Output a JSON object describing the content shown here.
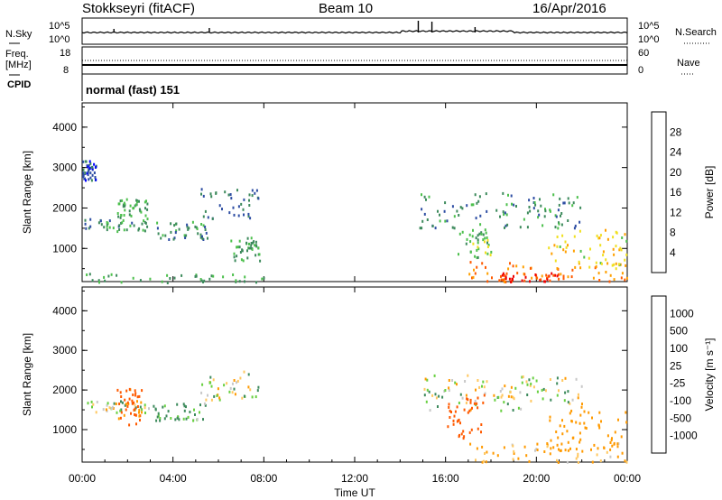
{
  "header": {
    "station": "Stokkseyri (fitACF)",
    "beam": "Beam 10",
    "date": "16/Apr/2016"
  },
  "top_panel": {
    "left_label": "N.Sky",
    "left_ticks": [
      "10^5",
      "10^0"
    ],
    "right_label": "N.Search",
    "right_ticks": [
      "10^5",
      "10^0"
    ]
  },
  "freq_panel": {
    "left_label_line1": "Freq.",
    "left_label_line2": "[MHz]",
    "left_ticks": [
      "18",
      "8"
    ],
    "right_label": "Nave",
    "right_ticks": [
      "60",
      "0"
    ]
  },
  "cpid": {
    "label": "CPID",
    "mode": "normal (fast) 151"
  },
  "power_panel": {
    "ylabel": "Slant Range [km]",
    "yticks": [
      "4000",
      "3000",
      "2000",
      "1000"
    ],
    "colorbar_label": "Power [dB]",
    "colorbar_ticks": [
      "28",
      "24",
      "20",
      "16",
      "12",
      "8",
      "4"
    ]
  },
  "velocity_panel": {
    "ylabel": "Slant Range [km]",
    "yticks": [
      "4000",
      "3000",
      "2000",
      "1000"
    ],
    "colorbar_label": "Velocity [m s⁻¹]",
    "colorbar_ticks": [
      "1000",
      "500",
      "100",
      "25",
      "-25",
      "-100",
      "-500",
      "-1000"
    ]
  },
  "xaxis": {
    "label": "Time UT",
    "ticks": [
      "00:00",
      "04:00",
      "08:00",
      "12:00",
      "16:00",
      "20:00",
      "00:00"
    ]
  },
  "colors": {
    "power_scale": [
      "#0000ff",
      "#2e4ea3",
      "#3d8a5c",
      "#4dc04d",
      "#f0e020",
      "#ffa000",
      "#ff5a00",
      "#ee0000"
    ],
    "velocity_scale": [
      "#ff0000",
      "#ff5a00",
      "#ff9a00",
      "#ffc860",
      "#c8c8c8",
      "#68d040",
      "#3d8a5c",
      "#2e4ea3",
      "#0000ff"
    ]
  },
  "chart_data": {
    "type": "heatmap",
    "x_range_hours": [
      0,
      24
    ],
    "y_range_km": [
      180,
      4600
    ],
    "power_clusters": [
      {
        "t0": 0.1,
        "t1": 3.0,
        "r0": 1450,
        "r1": 1750,
        "power_db": 10
      },
      {
        "t0": 1.5,
        "t1": 2.9,
        "r0": 1750,
        "r1": 2250,
        "power_db": 12
      },
      {
        "t0": 3.0,
        "t1": 5.5,
        "r0": 1250,
        "r1": 1700,
        "power_db": 10
      },
      {
        "t0": 5.2,
        "t1": 7.8,
        "r0": 1750,
        "r1": 2500,
        "power_db": 8
      },
      {
        "t0": 6.5,
        "t1": 7.8,
        "r0": 700,
        "r1": 1300,
        "power_db": 12
      },
      {
        "t0": 0.0,
        "t1": 8.0,
        "r0": 180,
        "r1": 400,
        "power_db": 12
      },
      {
        "t0": 0.0,
        "t1": 0.6,
        "r0": 2700,
        "r1": 3200,
        "power_db": 6
      },
      {
        "t0": 14.8,
        "t1": 22.0,
        "r0": 1500,
        "r1": 2400,
        "power_db": 10
      },
      {
        "t0": 16.5,
        "t1": 18.0,
        "r0": 800,
        "r1": 1500,
        "power_db": 14
      },
      {
        "t0": 17.0,
        "t1": 24.0,
        "r0": 200,
        "r1": 700,
        "power_db": 24
      },
      {
        "t0": 18.0,
        "t1": 21.0,
        "r0": 200,
        "r1": 420,
        "power_db": 29
      },
      {
        "t0": 20.5,
        "t1": 24.0,
        "r0": 500,
        "r1": 1500,
        "power_db": 18
      }
    ],
    "velocity_clusters": [
      {
        "t0": 0.1,
        "t1": 3.0,
        "r0": 1450,
        "r1": 1750,
        "velocity": 0
      },
      {
        "t0": 1.5,
        "t1": 2.6,
        "r0": 1100,
        "r1": 2100,
        "velocity": -600
      },
      {
        "t0": 3.0,
        "t1": 5.5,
        "r0": 1250,
        "r1": 1700,
        "velocity": 150
      },
      {
        "t0": 5.2,
        "t1": 7.8,
        "r0": 1750,
        "r1": 2500,
        "velocity": 0
      },
      {
        "t0": 14.8,
        "t1": 22.0,
        "r0": 1500,
        "r1": 2400,
        "velocity": 0
      },
      {
        "t0": 16.0,
        "t1": 17.8,
        "r0": 800,
        "r1": 1900,
        "velocity": -700
      },
      {
        "t0": 17.0,
        "t1": 24.0,
        "r0": 200,
        "r1": 700,
        "velocity": -150
      },
      {
        "t0": 20.5,
        "t1": 24.0,
        "r0": 500,
        "r1": 1500,
        "velocity": -300
      }
    ]
  }
}
